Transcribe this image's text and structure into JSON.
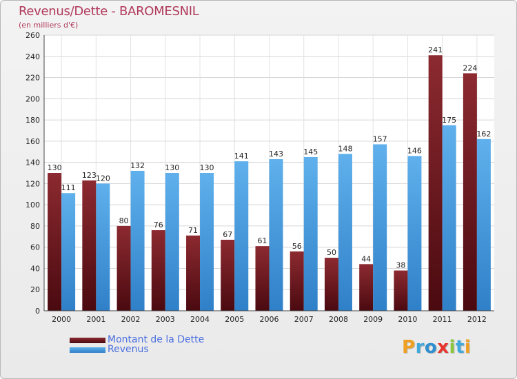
{
  "title": "Revenus/Dette - BAROMESNIL",
  "subtitle": "(en milliers d'€)",
  "logo": {
    "text": "Proxiti",
    "letters": [
      {
        "ch": "P",
        "color": "#f0a020"
      },
      {
        "ch": "r",
        "color": "#3fa9dc"
      },
      {
        "ch": "o",
        "color": "#2e8fd0"
      },
      {
        "ch": "x",
        "color": "#e8342c"
      },
      {
        "ch": "i",
        "color": "#8cc63f"
      },
      {
        "ch": "t",
        "color": "#3fa9dc"
      },
      {
        "ch": "i",
        "color": "#f0a020"
      }
    ]
  },
  "chart_data": {
    "type": "bar",
    "title": "Revenus/Dette - BAROMESNIL",
    "subtitle": "(en milliers d'€)",
    "xlabel": "",
    "ylabel": "",
    "ylim": [
      0,
      260
    ],
    "yticks": [
      0,
      20,
      40,
      60,
      80,
      100,
      120,
      140,
      160,
      180,
      200,
      220,
      240,
      260
    ],
    "grid": true,
    "legend_position": "bottom-left",
    "categories": [
      "2000",
      "2001",
      "2002",
      "2003",
      "2004",
      "2005",
      "2006",
      "2007",
      "2008",
      "2009",
      "2010",
      "2011",
      "2012"
    ],
    "series": [
      {
        "name": "Montant de la Dette",
        "color": "#7a1a22",
        "values": [
          130,
          123,
          80,
          76,
          71,
          67,
          61,
          56,
          50,
          44,
          38,
          241,
          224
        ]
      },
      {
        "name": "Revenus",
        "color": "#4a9fe0",
        "values": [
          111,
          120,
          132,
          130,
          130,
          141,
          143,
          145,
          148,
          157,
          146,
          175,
          162
        ]
      }
    ]
  }
}
